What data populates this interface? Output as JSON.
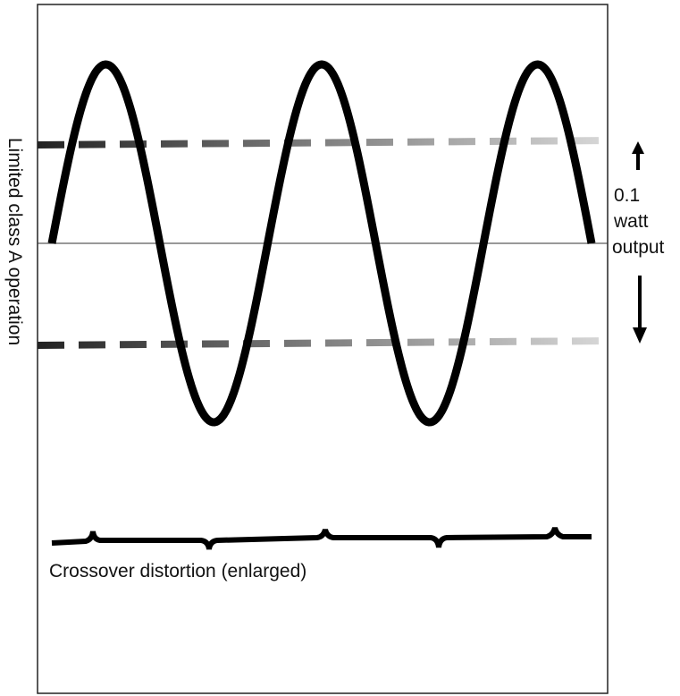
{
  "side_label": "Limited class A operation",
  "output_label": {
    "lines": [
      "0.1",
      "watt",
      "output"
    ]
  },
  "bottom_label": "Crossover distortion (enlarged)"
}
